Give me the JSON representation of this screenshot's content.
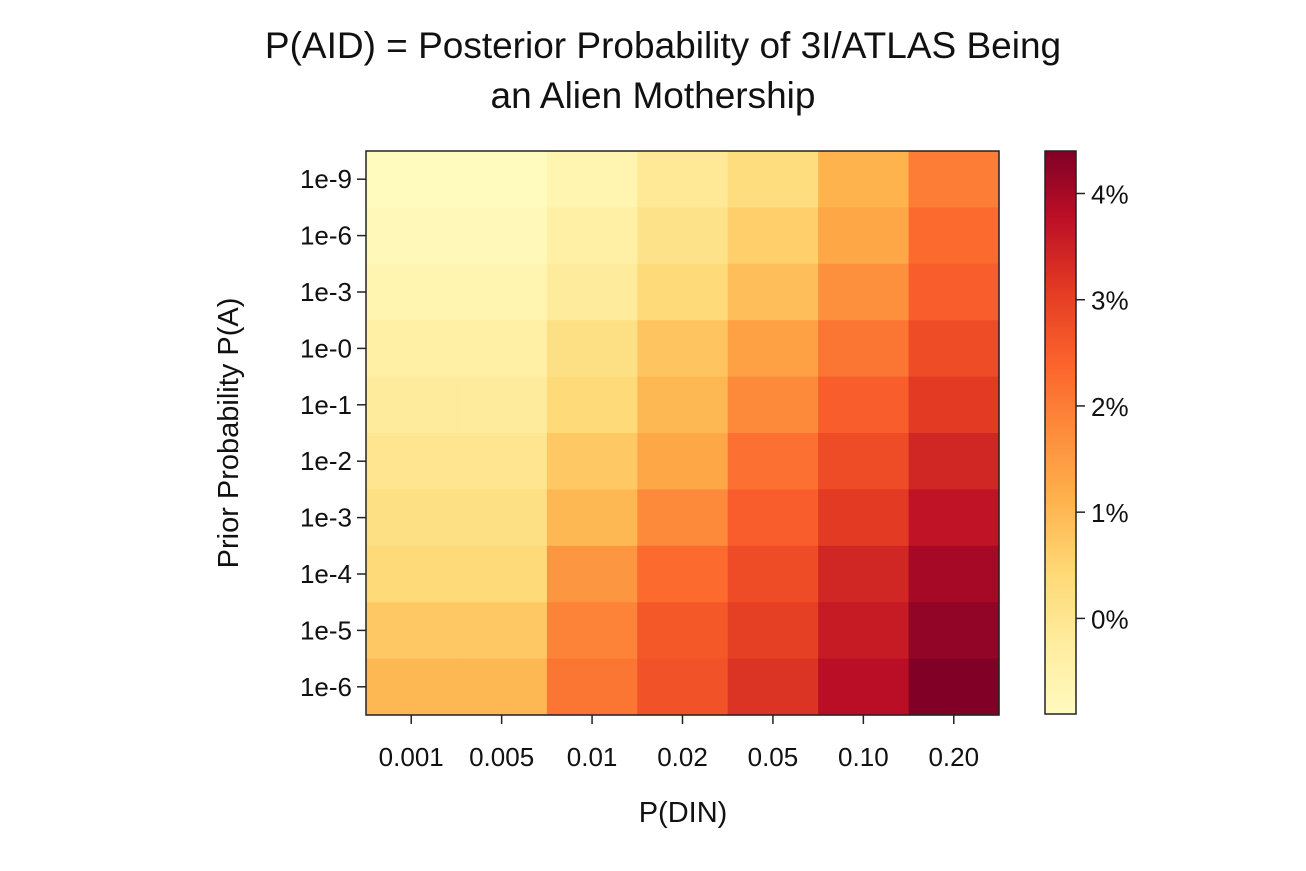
{
  "chart_data": {
    "type": "heatmap",
    "title_lines": [
      "P(AID) = Posterior Probability of 3I/ATLAS Being",
      "an Alien Mothership"
    ],
    "xlabel": "P(DIN)",
    "ylabel": "Prior Probability P(A)",
    "x_categories": [
      "0.001",
      "0.005",
      "0.01",
      "0.02",
      "0.05",
      "0.10",
      "0.20"
    ],
    "y_categories": [
      "1e-9",
      "1e-6",
      "1e-3",
      "1e-0",
      "1e-1",
      "1e-2",
      "1e-3",
      "1e-4",
      "1e-5",
      "1e-6"
    ],
    "values": [
      [
        -0.9,
        -0.9,
        -0.6,
        -0.1,
        0.3,
        1.1,
        2.0
      ],
      [
        -0.8,
        -0.8,
        -0.4,
        0.1,
        0.6,
        1.3,
        2.3
      ],
      [
        -0.6,
        -0.6,
        -0.2,
        0.4,
        0.9,
        1.7,
        2.5
      ],
      [
        -0.4,
        -0.4,
        0.2,
        0.8,
        1.4,
        2.1,
        2.8
      ],
      [
        -0.2,
        -0.2,
        0.4,
        1.0,
        1.8,
        2.5,
        3.1
      ],
      [
        0.0,
        0.0,
        0.7,
        1.3,
        2.2,
        2.8,
        3.4
      ],
      [
        0.2,
        0.2,
        1.0,
        1.8,
        2.5,
        3.1,
        3.7
      ],
      [
        0.4,
        0.4,
        1.6,
        2.3,
        2.8,
        3.4,
        4.0
      ],
      [
        0.7,
        0.7,
        1.9,
        2.6,
        3.0,
        3.6,
        4.2
      ],
      [
        1.0,
        1.0,
        2.1,
        2.7,
        3.2,
        3.8,
        4.4
      ]
    ],
    "colorbar": {
      "min": -0.9,
      "max": 4.4,
      "ticks": [
        0,
        1,
        2,
        3,
        4
      ],
      "tick_labels": [
        "0%",
        "1%",
        "2%",
        "3%",
        "4%"
      ],
      "colormap": "YlOrRd"
    }
  }
}
